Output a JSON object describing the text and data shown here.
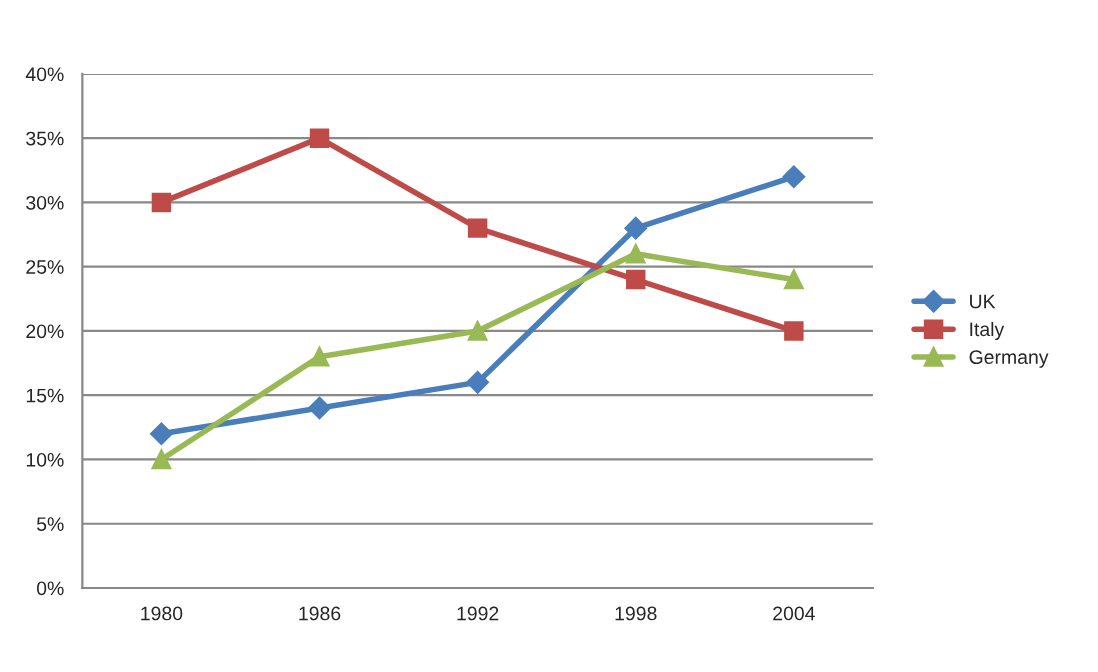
{
  "chart_data": {
    "type": "line",
    "categories": [
      "1980",
      "1986",
      "1992",
      "1998",
      "2004"
    ],
    "series": [
      {
        "name": "UK",
        "color": "#4a7ebb",
        "marker": "diamond",
        "values": [
          12,
          14,
          16,
          28,
          32
        ]
      },
      {
        "name": "Italy",
        "color": "#be4b48",
        "marker": "square",
        "values": [
          30,
          35,
          28,
          24,
          20
        ]
      },
      {
        "name": "Germany",
        "color": "#98b954",
        "marker": "triangle",
        "values": [
          10,
          18,
          20,
          26,
          24
        ]
      }
    ],
    "ylim": [
      0,
      40
    ],
    "yticks": [
      {
        "value": 0,
        "label": "0%"
      },
      {
        "value": 5,
        "label": "5%"
      },
      {
        "value": 10,
        "label": "10%"
      },
      {
        "value": 15,
        "label": "15%"
      },
      {
        "value": 20,
        "label": "20%"
      },
      {
        "value": 25,
        "label": "25%"
      },
      {
        "value": 30,
        "label": "30%"
      },
      {
        "value": 35,
        "label": "35%"
      },
      {
        "value": 40,
        "label": "40%"
      }
    ],
    "grid": "y",
    "legend": "right",
    "line_style": "solid"
  }
}
